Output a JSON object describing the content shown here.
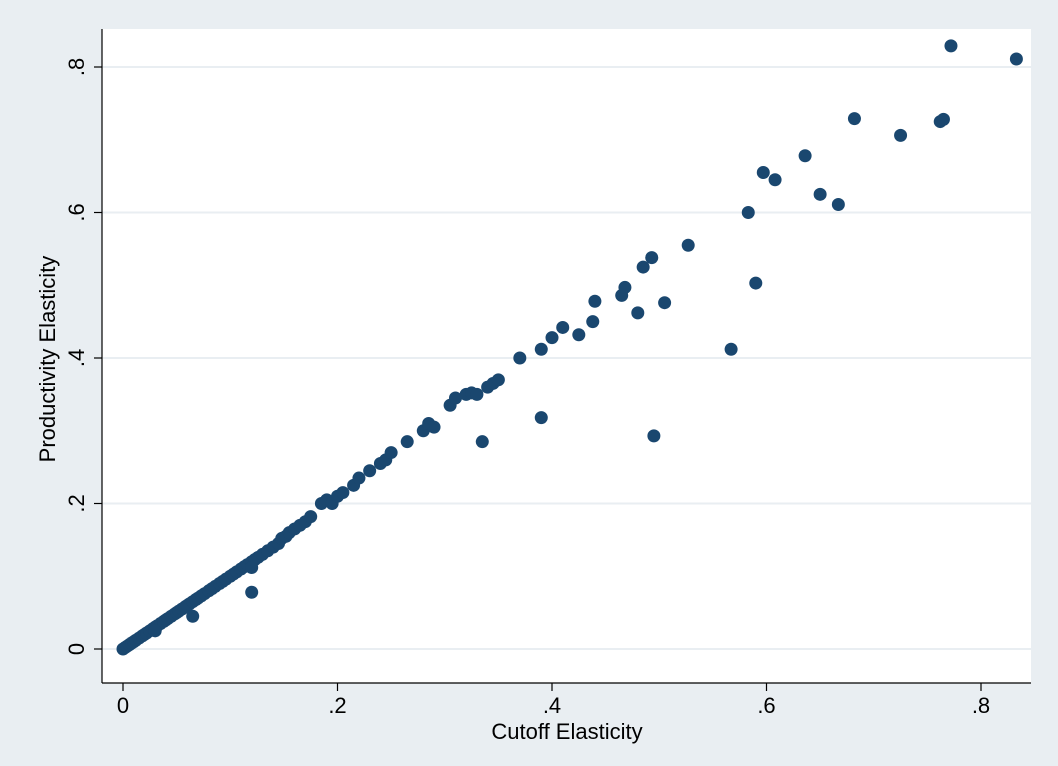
{
  "chart_data": {
    "type": "scatter",
    "xlabel": "Cutoff Elasticity",
    "ylabel": "Productivity Elasticity",
    "xlim": [
      -0.02,
      0.85
    ],
    "ylim": [
      -0.02,
      0.85
    ],
    "xticks": [
      0,
      0.2,
      0.4,
      0.6,
      0.8
    ],
    "xtick_labels": [
      "0",
      ".2",
      ".4",
      ".6",
      ".8"
    ],
    "yticks": [
      0,
      0.2,
      0.4,
      0.6,
      0.8
    ],
    "ytick_labels": [
      "0",
      ".2",
      ".4",
      ".6",
      ".8"
    ],
    "grid": "horizontal",
    "colors": {
      "background": "#e9eef2",
      "plot_area": "#ffffff",
      "marker": "#1a476f",
      "grid": "#e9eef2"
    },
    "series": [
      {
        "x": [
          0.0,
          0.002,
          0.004,
          0.006,
          0.008,
          0.01,
          0.012,
          0.015,
          0.018,
          0.02,
          0.022,
          0.025,
          0.028,
          0.03,
          0.032,
          0.035,
          0.038,
          0.04,
          0.042,
          0.045,
          0.048,
          0.05,
          0.052,
          0.055,
          0.058,
          0.06,
          0.062,
          0.065,
          0.068,
          0.07,
          0.073,
          0.076,
          0.08,
          0.083,
          0.086,
          0.09,
          0.093,
          0.096,
          0.1,
          0.103,
          0.106,
          0.11,
          0.113,
          0.116,
          0.12,
          0.123,
          0.126,
          0.13,
          0.135,
          0.14,
          0.145,
          0.148,
          0.152,
          0.155,
          0.16,
          0.165,
          0.17,
          0.175,
          0.185,
          0.19,
          0.195,
          0.2,
          0.205,
          0.215,
          0.22,
          0.23,
          0.24,
          0.245,
          0.25,
          0.265,
          0.28,
          0.285,
          0.29,
          0.305,
          0.31,
          0.32,
          0.325,
          0.33,
          0.34,
          0.345,
          0.35,
          0.37,
          0.39,
          0.4,
          0.41,
          0.425,
          0.438,
          0.44,
          0.465,
          0.468,
          0.48,
          0.485,
          0.493,
          0.505,
          0.527,
          0.583,
          0.597,
          0.608,
          0.636,
          0.65,
          0.667,
          0.682,
          0.725,
          0.762,
          0.765,
          0.772,
          0.833,
          0.12,
          0.065,
          0.03,
          0.12,
          0.335,
          0.39,
          0.495,
          0.567,
          0.59
        ],
        "y": [
          0.0,
          0.002,
          0.004,
          0.006,
          0.008,
          0.01,
          0.012,
          0.015,
          0.018,
          0.02,
          0.022,
          0.025,
          0.028,
          0.03,
          0.032,
          0.035,
          0.038,
          0.04,
          0.042,
          0.045,
          0.048,
          0.05,
          0.052,
          0.055,
          0.058,
          0.06,
          0.062,
          0.065,
          0.068,
          0.07,
          0.073,
          0.076,
          0.08,
          0.083,
          0.086,
          0.09,
          0.093,
          0.096,
          0.1,
          0.103,
          0.106,
          0.11,
          0.113,
          0.116,
          0.12,
          0.123,
          0.126,
          0.13,
          0.135,
          0.14,
          0.145,
          0.152,
          0.155,
          0.16,
          0.165,
          0.17,
          0.175,
          0.182,
          0.2,
          0.205,
          0.2,
          0.21,
          0.215,
          0.225,
          0.235,
          0.245,
          0.255,
          0.26,
          0.27,
          0.285,
          0.3,
          0.31,
          0.305,
          0.335,
          0.345,
          0.35,
          0.352,
          0.35,
          0.36,
          0.365,
          0.37,
          0.4,
          0.412,
          0.428,
          0.442,
          0.432,
          0.45,
          0.478,
          0.486,
          0.497,
          0.462,
          0.525,
          0.538,
          0.476,
          0.555,
          0.6,
          0.655,
          0.645,
          0.678,
          0.625,
          0.611,
          0.729,
          0.706,
          0.725,
          0.728,
          0.829,
          0.811,
          0.112,
          0.045,
          0.025,
          0.078,
          0.285,
          0.318,
          0.293,
          0.412,
          0.503
        ]
      }
    ]
  }
}
